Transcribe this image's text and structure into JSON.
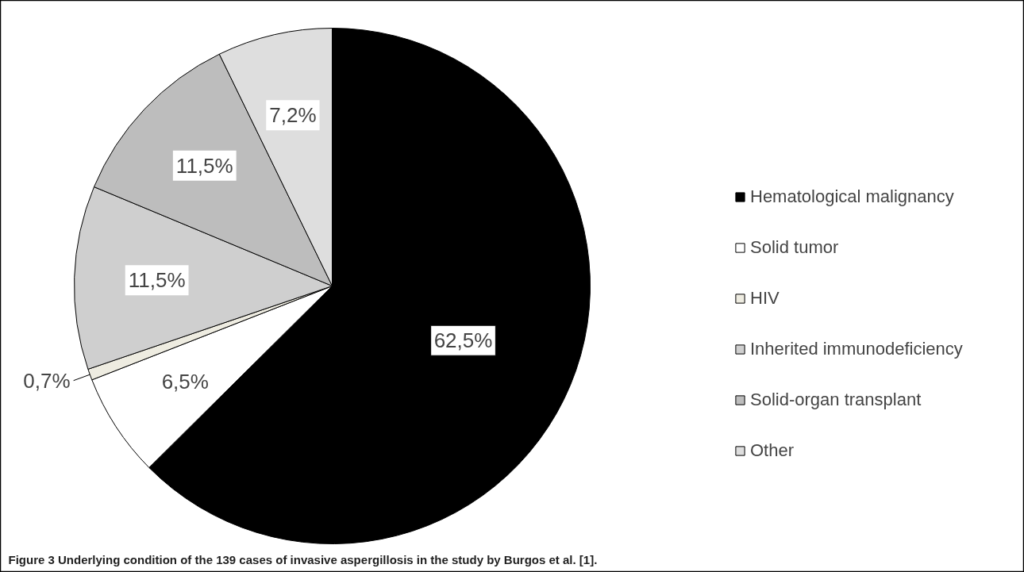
{
  "chart_data": {
    "type": "pie",
    "title": "Figure 3 Underlying condition of the 139 cases of invasive aspergillosis in the study by Burgos et al. [1].",
    "categories": [
      "Hematological malignancy",
      "Solid tumor",
      "HIV",
      "Inherited immunodeficiency",
      "Solid-organ transplant",
      "Other"
    ],
    "values": [
      62.5,
      6.5,
      0.7,
      11.5,
      11.5,
      7.2
    ],
    "value_labels": [
      "62,5%",
      "6,5%",
      "0,7%",
      "11,5%",
      "11,5%",
      "7,2%"
    ],
    "colors": [
      "#000000",
      "#ffffff",
      "#eeece1",
      "#cfcfcf",
      "#bdbdbd",
      "#dedede"
    ],
    "legend": "right"
  }
}
